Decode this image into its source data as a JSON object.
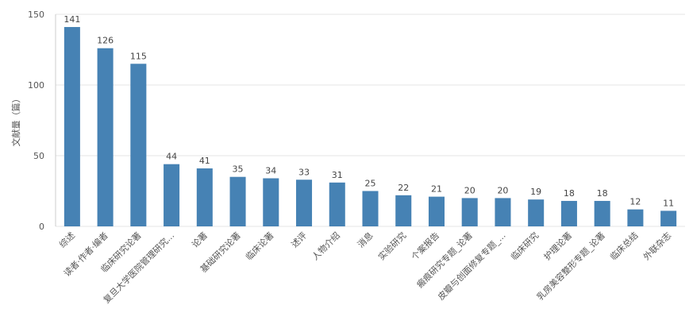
{
  "chart_data": {
    "type": "bar",
    "ylabel": "文献量（篇）",
    "ylim": [
      0,
      150
    ],
    "yticks": [
      0,
      50,
      100,
      150
    ],
    "grid": true,
    "bar_color": "#4682B4",
    "grid_color": "#e6e6e6",
    "categories": [
      "综述",
      "读者·作者·编者",
      "临床研究论著",
      "复旦大学医院管理研究...",
      "论著",
      "基础研究论著",
      "临床论著",
      "述评",
      "人物介绍",
      "消息",
      "实验研究",
      "个案报告",
      "瘢痕研究专题_论著",
      "皮瓣与创面修复专题_...",
      "临床研究",
      "护理论著",
      "乳房美容整形专题_论著",
      "临床总结",
      "外联杂志"
    ],
    "values": [
      141,
      126,
      115,
      44,
      41,
      35,
      34,
      33,
      31,
      25,
      22,
      21,
      20,
      20,
      19,
      18,
      18,
      12,
      11
    ]
  }
}
